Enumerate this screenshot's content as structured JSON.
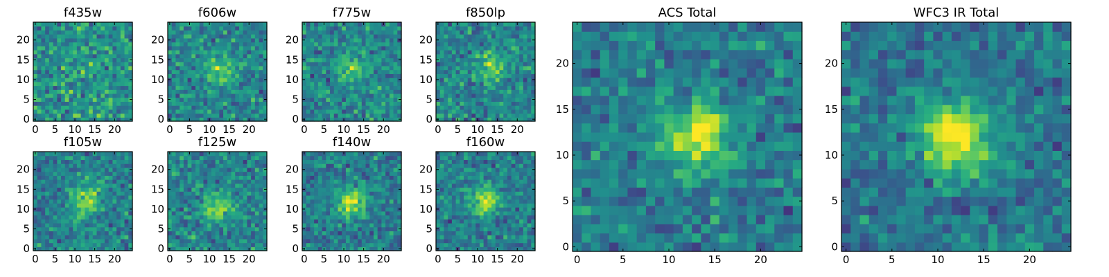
{
  "figure": {
    "colormap": "viridis",
    "frame_color": "#000000"
  },
  "chart_data": [
    {
      "type": "heatmap",
      "title": "f435w",
      "pixels": 25,
      "xticks": [
        0,
        5,
        10,
        15,
        20
      ],
      "yticks": [
        0,
        5,
        10,
        15,
        20
      ],
      "xlim": [
        -0.5,
        24.5
      ],
      "ylim": [
        -0.5,
        24.5
      ],
      "source_peak": [
        12,
        12
      ],
      "source_amplitude": 0.05
    },
    {
      "type": "heatmap",
      "title": "f606w",
      "pixels": 25,
      "xticks": [
        0,
        5,
        10,
        15,
        20
      ],
      "yticks": [
        0,
        5,
        10,
        15,
        20
      ],
      "xlim": [
        -0.5,
        24.5
      ],
      "ylim": [
        -0.5,
        24.5
      ],
      "source_peak": [
        13,
        12
      ],
      "source_amplitude": 0.3
    },
    {
      "type": "heatmap",
      "title": "f775w",
      "pixels": 25,
      "xticks": [
        0,
        5,
        10,
        15,
        20
      ],
      "yticks": [
        0,
        5,
        10,
        15,
        20
      ],
      "xlim": [
        -0.5,
        24.5
      ],
      "ylim": [
        -0.5,
        24.5
      ],
      "source_peak": [
        12,
        13
      ],
      "source_amplitude": 0.25
    },
    {
      "type": "heatmap",
      "title": "f850lp",
      "pixels": 25,
      "xticks": [
        0,
        5,
        10,
        15,
        20
      ],
      "yticks": [
        0,
        5,
        10,
        15,
        20
      ],
      "xlim": [
        -0.5,
        24.5
      ],
      "ylim": [
        -0.5,
        24.5
      ],
      "source_peak": [
        13,
        13
      ],
      "source_amplitude": 0.3
    },
    {
      "type": "heatmap",
      "title": "f105w",
      "pixels": 25,
      "xticks": [
        0,
        5,
        10,
        15,
        20
      ],
      "yticks": [
        0,
        5,
        10,
        15,
        20
      ],
      "xlim": [
        -0.5,
        24.5
      ],
      "ylim": [
        -0.5,
        24.5
      ],
      "source_peak": [
        13,
        12
      ],
      "source_amplitude": 0.4
    },
    {
      "type": "heatmap",
      "title": "f125w",
      "pixels": 25,
      "xticks": [
        0,
        5,
        10,
        15,
        20
      ],
      "yticks": [
        0,
        5,
        10,
        15,
        20
      ],
      "xlim": [
        -0.5,
        24.5
      ],
      "ylim": [
        -0.5,
        24.5
      ],
      "source_peak": [
        12,
        11
      ],
      "source_amplitude": 0.35
    },
    {
      "type": "heatmap",
      "title": "f140w",
      "pixels": 25,
      "xticks": [
        0,
        5,
        10,
        15,
        20
      ],
      "yticks": [
        0,
        5,
        10,
        15,
        20
      ],
      "xlim": [
        -0.5,
        24.5
      ],
      "ylim": [
        -0.5,
        24.5
      ],
      "source_peak": [
        12,
        12
      ],
      "source_amplitude": 0.5
    },
    {
      "type": "heatmap",
      "title": "f160w",
      "pixels": 25,
      "xticks": [
        0,
        5,
        10,
        15,
        20
      ],
      "yticks": [
        0,
        5,
        10,
        15,
        20
      ],
      "xlim": [
        -0.5,
        24.5
      ],
      "ylim": [
        -0.5,
        24.5
      ],
      "source_peak": [
        12,
        12
      ],
      "source_amplitude": 0.5
    },
    {
      "type": "heatmap",
      "title": "ACS Total",
      "pixels": 25,
      "xticks": [
        0,
        5,
        10,
        15,
        20
      ],
      "yticks": [
        0,
        5,
        10,
        15,
        20
      ],
      "xlim": [
        -0.5,
        24.5
      ],
      "ylim": [
        -0.5,
        24.5
      ],
      "source_peak": [
        13,
        12
      ],
      "source_amplitude": 0.55
    },
    {
      "type": "heatmap",
      "title": "WFC3 IR Total",
      "pixels": 25,
      "xticks": [
        0,
        5,
        10,
        15,
        20
      ],
      "yticks": [
        0,
        5,
        10,
        15,
        20
      ],
      "xlim": [
        -0.5,
        24.5
      ],
      "ylim": [
        -0.5,
        24.5
      ],
      "source_peak": [
        12,
        12
      ],
      "source_amplitude": 0.65
    }
  ]
}
